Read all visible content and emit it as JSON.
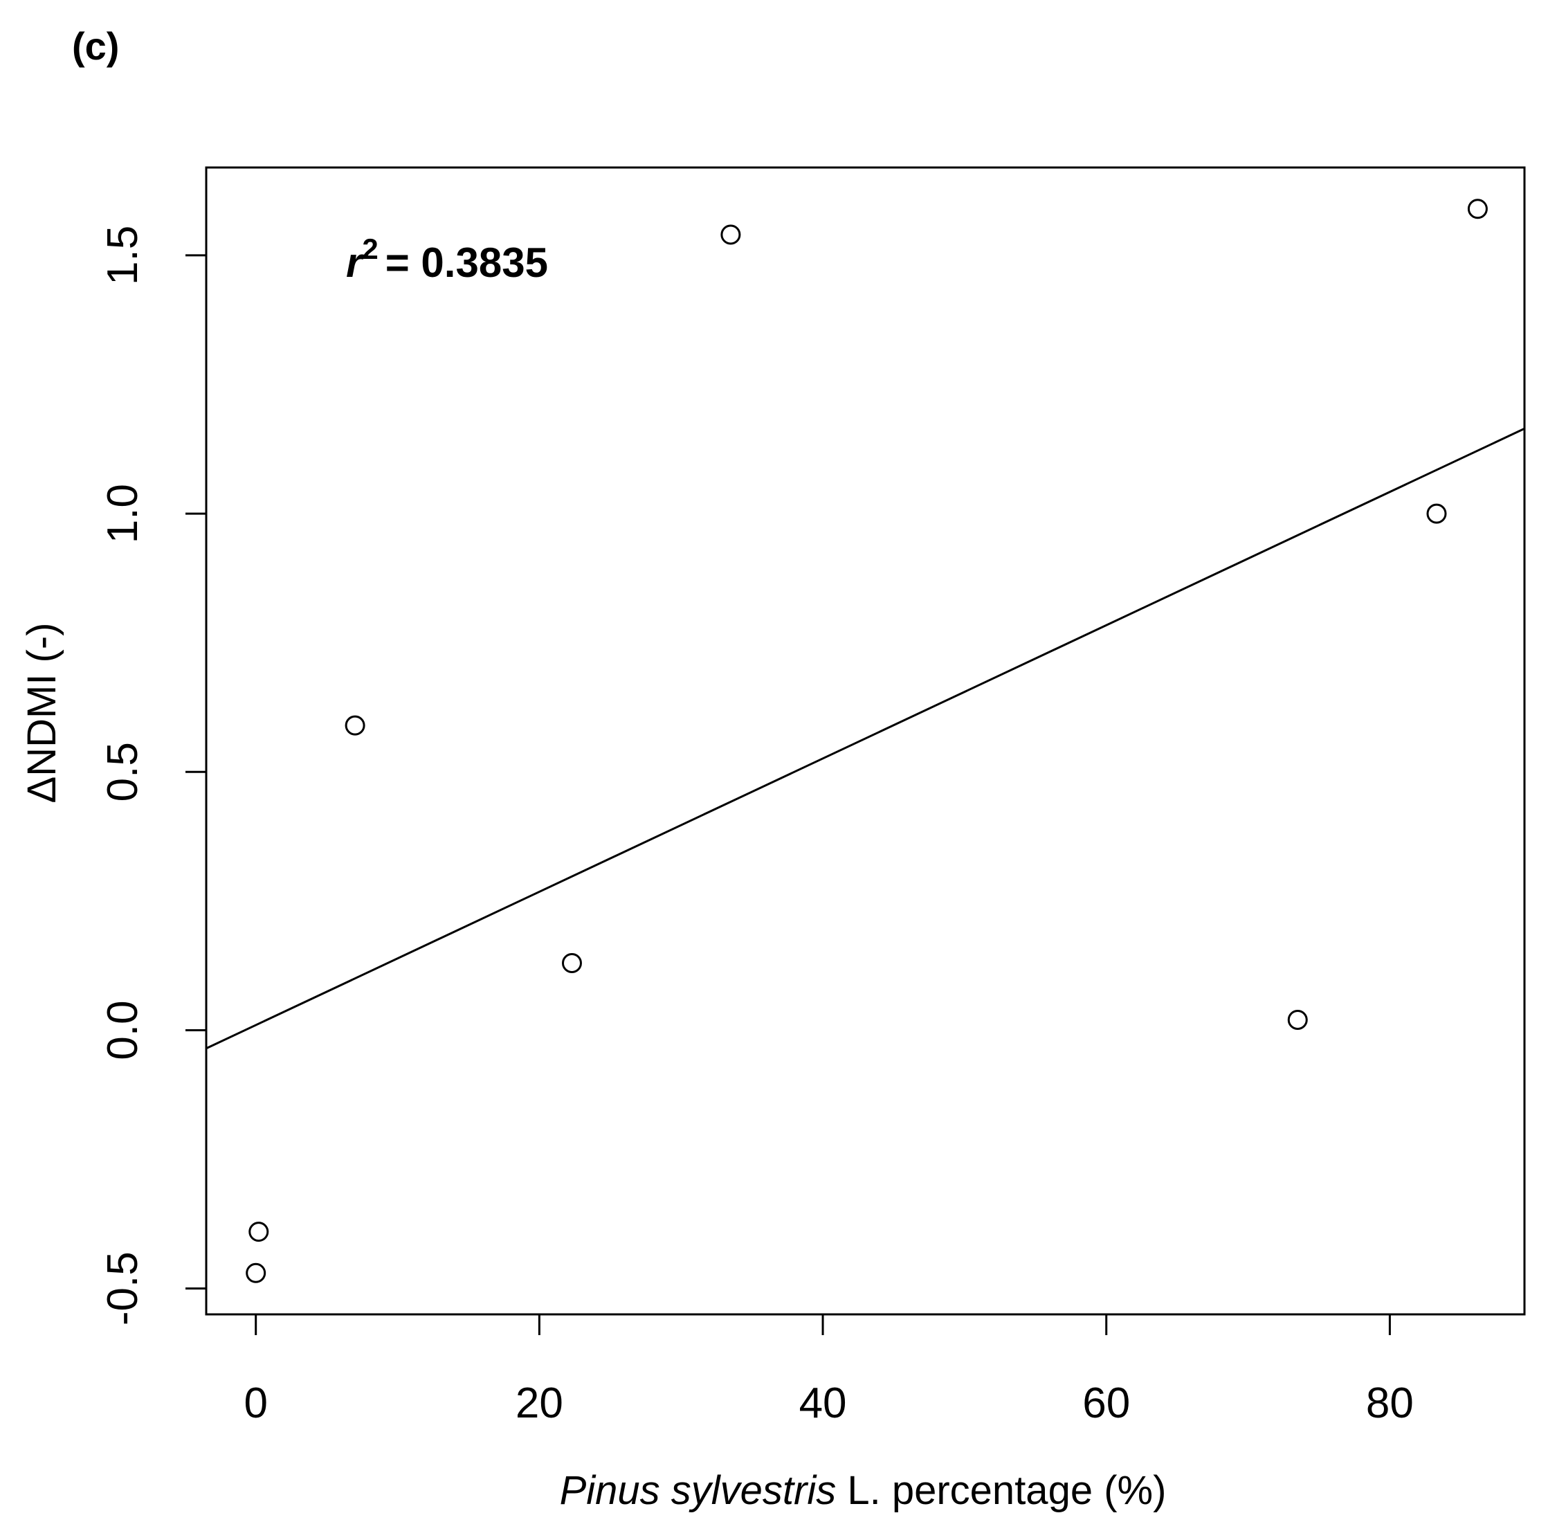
{
  "panel_label": "(c)",
  "annotation": {
    "symbol": "r",
    "superscript": "2",
    "text": "= 0.3835"
  },
  "chart_data": {
    "type": "scatter",
    "title": "",
    "xlabel_italic": "Pinus sylvestris",
    "xlabel_rest": " L. percentage (%)",
    "ylabel": "ΔNDMI (-)",
    "xlim": [
      -3.5,
      89.5
    ],
    "ylim": [
      -0.55,
      1.67
    ],
    "xticks": [
      0,
      20,
      40,
      60,
      80
    ],
    "xtick_labels": [
      "0",
      "20",
      "40",
      "60",
      "80"
    ],
    "yticks": [
      -0.5,
      0.0,
      0.5,
      1.0,
      1.5
    ],
    "ytick_labels": [
      "-0.5",
      "0.0",
      "0.5",
      "1.0",
      "1.5"
    ],
    "points": [
      {
        "x": 0.0,
        "y": -0.47
      },
      {
        "x": 0.2,
        "y": -0.39
      },
      {
        "x": 7.0,
        "y": 0.59
      },
      {
        "x": 22.3,
        "y": 0.13
      },
      {
        "x": 33.5,
        "y": 1.54
      },
      {
        "x": 73.5,
        "y": 0.02
      },
      {
        "x": 83.3,
        "y": 1.0
      },
      {
        "x": 86.2,
        "y": 1.59
      }
    ],
    "regression_line": {
      "intercept": 0.01,
      "slope": 0.0129
    },
    "grid": false
  }
}
